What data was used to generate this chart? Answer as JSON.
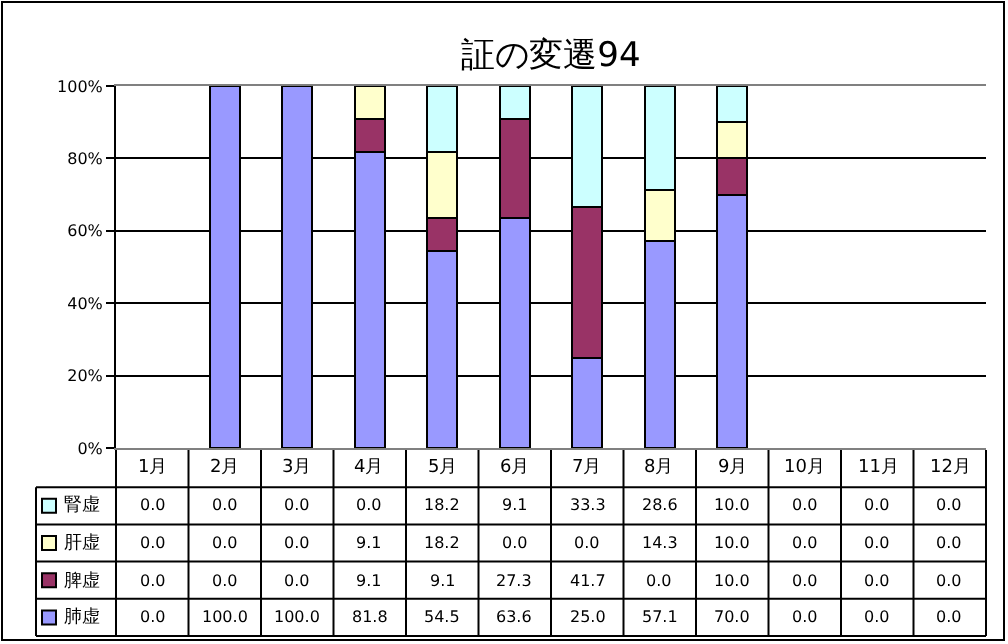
{
  "chart_data": {
    "type": "bar",
    "title": "証の変遷94",
    "stacked": true,
    "categories": [
      "1月",
      "2月",
      "3月",
      "4月",
      "5月",
      "6月",
      "7月",
      "8月",
      "9月",
      "10月",
      "11月",
      "12月"
    ],
    "series": [
      {
        "name": "肺虚",
        "color": "#9999ff",
        "values": [
          0,
          100,
          100,
          81.8,
          54.5,
          63.6,
          25,
          57.1,
          70,
          0,
          0,
          0
        ],
        "value_labels": [
          "0.0",
          "100.0",
          "100.0",
          "81.8",
          "54.5",
          "63.6",
          "25.0",
          "57.1",
          "70.0",
          "0.0",
          "0.0",
          "0.0"
        ]
      },
      {
        "name": "脾虚",
        "color": "#993366",
        "values": [
          0,
          0,
          0,
          9.1,
          9.1,
          27.3,
          41.7,
          0,
          10,
          0,
          0,
          0
        ],
        "value_labels": [
          "0.0",
          "0.0",
          "0.0",
          "9.1",
          "9.1",
          "27.3",
          "41.7",
          "0.0",
          "10.0",
          "0.0",
          "0.0",
          "0.0"
        ]
      },
      {
        "name": "肝虚",
        "color": "#ffffcc",
        "values": [
          0,
          0,
          0,
          9.1,
          18.2,
          0,
          0,
          14.3,
          10,
          0,
          0,
          0
        ],
        "value_labels": [
          "0.0",
          "0.0",
          "0.0",
          "9.1",
          "18.2",
          "0.0",
          "0.0",
          "14.3",
          "10.0",
          "0.0",
          "0.0",
          "0.0"
        ]
      },
      {
        "name": "腎虚",
        "color": "#ccffff",
        "values": [
          0,
          0,
          0,
          0,
          18.2,
          9.1,
          33.3,
          28.6,
          10,
          0,
          0,
          0
        ],
        "value_labels": [
          "0.0",
          "0.0",
          "0.0",
          "0.0",
          "18.2",
          "9.1",
          "33.3",
          "28.6",
          "10.0",
          "0.0",
          "0.0",
          "0.0"
        ]
      }
    ],
    "ylim": [
      0,
      100
    ],
    "yticks": [
      {
        "value": 0,
        "label": "0%"
      },
      {
        "value": 20,
        "label": "20%"
      },
      {
        "value": 40,
        "label": "40%"
      },
      {
        "value": 60,
        "label": "60%"
      },
      {
        "value": 80,
        "label": "80%"
      },
      {
        "value": 100,
        "label": "100%"
      }
    ],
    "grid": "y",
    "legend": "bottom left"
  }
}
